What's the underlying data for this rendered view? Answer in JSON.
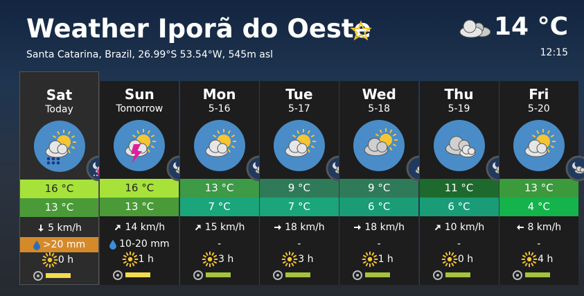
{
  "header": {
    "title": "Weather Iporã do Oeste",
    "subtitle": "Santa Catarina, Brazil, 26.99°S 53.54°W, 545m asl",
    "temperature": "14 °C",
    "time": "12:15"
  },
  "days": [
    {
      "name": "Sat",
      "sub": "Today",
      "high": "16 °C",
      "low": "13 °C",
      "wind": "5 km/h",
      "precip": ">20 mm",
      "sun": "0 h",
      "high_color": "#a6e23a",
      "low_color": "#4b9a38",
      "bar_color": "#f2dc4c"
    },
    {
      "name": "Sun",
      "sub": "Tomorrow",
      "high": "16 °C",
      "low": "13 °C",
      "wind": "14 km/h",
      "precip": "10-20 mm",
      "sun": "1 h",
      "high_color": "#a6e23a",
      "low_color": "#4b9a38",
      "bar_color": "#f2dc4c"
    },
    {
      "name": "Mon",
      "sub": "5-16",
      "high": "13 °C",
      "low": "7 °C",
      "wind": "15 km/h",
      "precip": "-",
      "sun": "3 h",
      "high_color": "#3d9a46",
      "low_color": "#1ba57a",
      "bar_color": "#a5c43c"
    },
    {
      "name": "Tue",
      "sub": "5-17",
      "high": "9 °C",
      "low": "7 °C",
      "wind": "18 km/h",
      "precip": "-",
      "sun": "3 h",
      "high_color": "#2f7a58",
      "low_color": "#1ba57a",
      "bar_color": "#a5c43c"
    },
    {
      "name": "Wed",
      "sub": "5-18",
      "high": "9 °C",
      "low": "6 °C",
      "wind": "18 km/h",
      "precip": "-",
      "sun": "1 h",
      "high_color": "#2f7a58",
      "low_color": "#1a9c77",
      "bar_color": "#a5c43c"
    },
    {
      "name": "Thu",
      "sub": "5-19",
      "high": "11 °C",
      "low": "6 °C",
      "wind": "10 km/h",
      "precip": "-",
      "sun": "0 h",
      "high_color": "#1e6a2e",
      "low_color": "#1a9c77",
      "bar_color": "#a5c43c"
    },
    {
      "name": "Fri",
      "sub": "5-20",
      "high": "13 °C",
      "low": "4 °C",
      "wind": "8 km/h",
      "precip": "-",
      "sun": "4 h",
      "high_color": "#3b9a3b",
      "low_color": "#14b34c",
      "bar_color": "#a5c43c"
    }
  ]
}
